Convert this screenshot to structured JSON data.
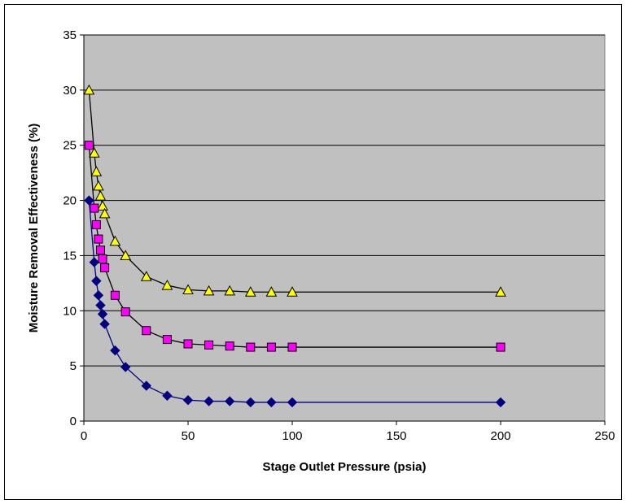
{
  "chart_data": {
    "type": "line",
    "title": "",
    "xlabel": "Stage Outlet Pressure (psia)",
    "ylabel": "Moisture Removal Effectiveness (%)",
    "xlim": [
      0,
      250
    ],
    "ylim": [
      0,
      35
    ],
    "x_ticks": [
      "0",
      "50",
      "100",
      "150",
      "200",
      "250"
    ],
    "y_ticks": [
      "0",
      "5",
      "10",
      "15",
      "20",
      "25",
      "30",
      "35"
    ],
    "grid": "horizontal",
    "plot_background": "#c0c0c0",
    "legend": "none",
    "series": [
      {
        "marker": "triangle",
        "color": "#ffff00",
        "line_color": "#000000",
        "x": [
          2.5,
          5,
          6,
          7,
          8,
          9,
          10,
          15,
          20,
          30,
          40,
          50,
          60,
          70,
          80,
          90,
          100,
          200
        ],
        "y": [
          30.0,
          24.3,
          22.6,
          21.3,
          20.4,
          19.5,
          18.8,
          16.3,
          15.0,
          13.1,
          12.3,
          11.9,
          11.8,
          11.8,
          11.7,
          11.7,
          11.7,
          11.7
        ]
      },
      {
        "marker": "square",
        "color": "#ff00ff",
        "line_color": "#000000",
        "x": [
          2.5,
          5,
          6,
          7,
          8,
          9,
          10,
          15,
          20,
          30,
          40,
          50,
          60,
          70,
          80,
          90,
          100,
          200
        ],
        "y": [
          25.0,
          19.3,
          17.8,
          16.5,
          15.5,
          14.7,
          13.9,
          11.4,
          9.9,
          8.2,
          7.4,
          7.0,
          6.9,
          6.8,
          6.7,
          6.7,
          6.7,
          6.7
        ]
      },
      {
        "marker": "diamond",
        "color": "#000080",
        "line_color": "#000080",
        "x": [
          2.5,
          5,
          6,
          7,
          8,
          9,
          10,
          15,
          20,
          30,
          40,
          50,
          60,
          70,
          80,
          90,
          100,
          200
        ],
        "y": [
          20.0,
          14.4,
          12.7,
          11.4,
          10.5,
          9.7,
          8.8,
          6.4,
          4.9,
          3.2,
          2.3,
          1.9,
          1.8,
          1.8,
          1.7,
          1.7,
          1.7,
          1.7
        ]
      }
    ]
  }
}
